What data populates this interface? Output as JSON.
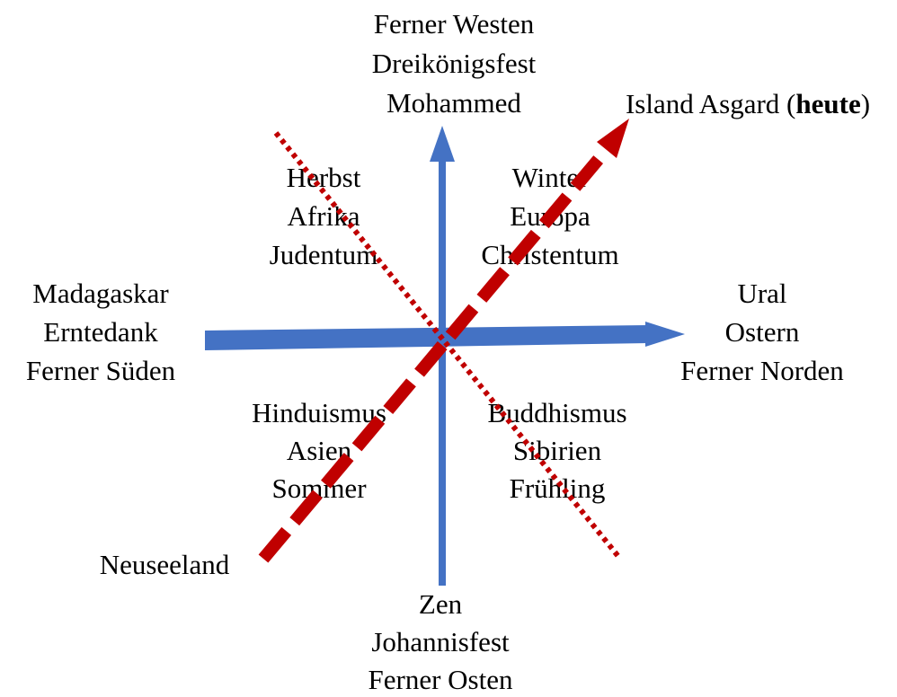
{
  "labels": {
    "top": [
      "Ferner Westen",
      "Dreikönigsfest",
      "Mohammed"
    ],
    "upper_left": [
      "Herbst",
      "Afrika",
      "Judentum"
    ],
    "upper_right": [
      "Winter",
      "Europa",
      "Christentum"
    ],
    "left": [
      "Madagaskar",
      "Erntedank",
      "Ferner Süden"
    ],
    "right": [
      "Ural",
      "Ostern",
      "Ferner Norden"
    ],
    "lower_left": [
      "Hinduismus",
      "Asien",
      "Sommer"
    ],
    "lower_right": [
      "Buddhismus",
      "Sibirien",
      "Frühling"
    ],
    "bottom": [
      "Zen",
      "Johannisfest",
      "Ferner Osten"
    ],
    "bottom_left": "Neuseeland"
  },
  "island": {
    "prefix": "Island Asgard (",
    "bold": "heute",
    "suffix": ")"
  }
}
